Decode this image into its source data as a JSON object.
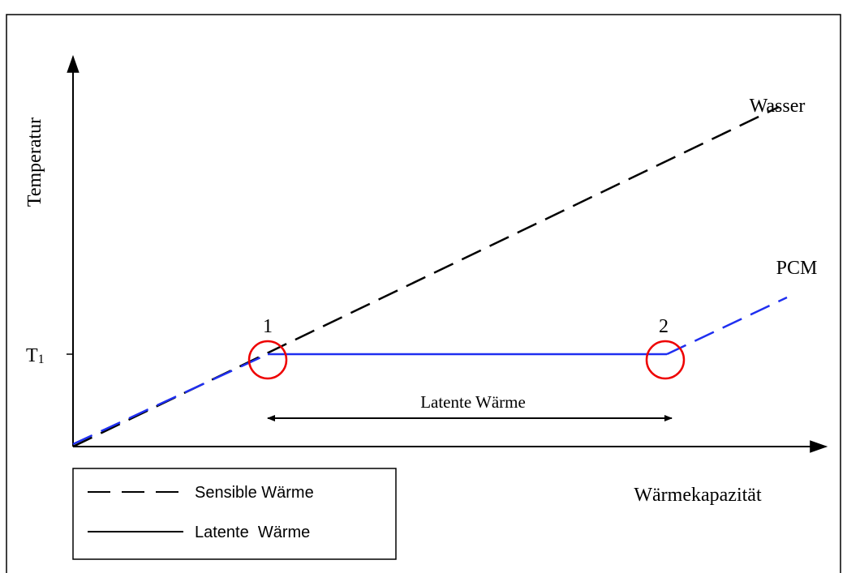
{
  "axes": {
    "y_label": "Temperatur",
    "x_label": "Wärmekapazität",
    "t1": {
      "text": "T",
      "subscript": "1"
    }
  },
  "curves": {
    "water": "Wasser",
    "pcm": "PCM"
  },
  "points": [
    "1",
    "2"
  ],
  "span_label": "Latente Wärme",
  "legend": [
    "Sensible Wärme",
    "Latente  Wärme"
  ]
}
